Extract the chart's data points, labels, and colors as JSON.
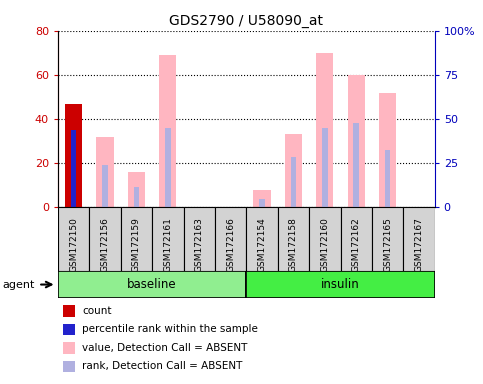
{
  "title": "GDS2790 / U58090_at",
  "samples": [
    "GSM172150",
    "GSM172156",
    "GSM172159",
    "GSM172161",
    "GSM172163",
    "GSM172166",
    "GSM172154",
    "GSM172158",
    "GSM172160",
    "GSM172162",
    "GSM172165",
    "GSM172167"
  ],
  "groups": [
    "baseline",
    "baseline",
    "baseline",
    "baseline",
    "baseline",
    "baseline",
    "insulin",
    "insulin",
    "insulin",
    "insulin",
    "insulin",
    "insulin"
  ],
  "ylim_left": [
    0,
    80
  ],
  "ylim_right": [
    0,
    100
  ],
  "yticks_left": [
    0,
    20,
    40,
    60,
    80
  ],
  "yticks_right": [
    0,
    25,
    50,
    75,
    100
  ],
  "ytick_labels_right": [
    "0",
    "25",
    "50",
    "75",
    "100%"
  ],
  "count_values": [
    47,
    0,
    0,
    0,
    0,
    0,
    0,
    0,
    0,
    0,
    0,
    0
  ],
  "rank_values": [
    35,
    0,
    0,
    0,
    0,
    0,
    0,
    0,
    0,
    0,
    0,
    0
  ],
  "absent_value_values": [
    0,
    32,
    16,
    69,
    0,
    0,
    8,
    33,
    70,
    60,
    52,
    0
  ],
  "absent_rank_values": [
    0,
    19,
    9,
    36,
    0,
    0,
    4,
    23,
    36,
    38,
    26,
    0
  ],
  "count_color": "#cc0000",
  "rank_color": "#2222cc",
  "absent_value_color": "#ffb6c1",
  "absent_rank_color": "#b0b0e0",
  "bar_width": 0.55,
  "rank_bar_width": 0.18,
  "agent_label": "agent",
  "legend_items": [
    {
      "color": "#cc0000",
      "label": "count"
    },
    {
      "color": "#2222cc",
      "label": "percentile rank within the sample"
    },
    {
      "color": "#ffb6c1",
      "label": "value, Detection Call = ABSENT"
    },
    {
      "color": "#b0b0e0",
      "label": "rank, Detection Call = ABSENT"
    }
  ],
  "left_tick_color": "#cc0000",
  "right_tick_color": "#0000bb",
  "baseline_color": "#90ee90",
  "insulin_color": "#44ee44"
}
